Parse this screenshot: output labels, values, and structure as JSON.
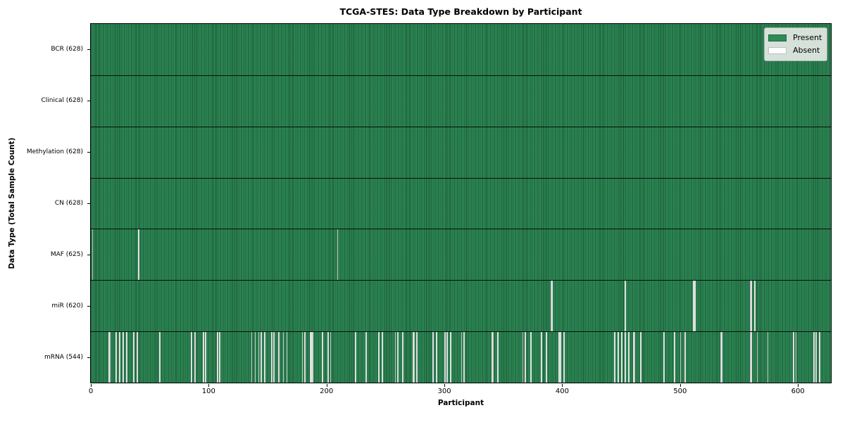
{
  "chart_data": {
    "type": "heatmap",
    "title": "TCGA-STES: Data Type Breakdown by Participant",
    "xlabel": "Participant",
    "ylabel": "Data Type (Total Sample Count)",
    "x_range": [
      0,
      628
    ],
    "x_ticks": [
      0,
      100,
      200,
      300,
      400,
      500,
      600
    ],
    "n_participants": 628,
    "grid": "row-separators-only",
    "legend_position": "upper right",
    "legend_entries": [
      {
        "label": "Present",
        "color": "#2e8b57"
      },
      {
        "label": "Absent",
        "color": "#ffffff"
      }
    ],
    "colors": {
      "present": "#2e8b57",
      "absent": "#ffffff",
      "cell_edge": "rgba(8,38,22,0.55)",
      "plot_border": "#000000",
      "legend_background": "#e9ece9"
    },
    "rows": [
      {
        "name": "BCR",
        "label": "BCR (628)",
        "present_count": 628,
        "absent_count": 0,
        "absent_participants": []
      },
      {
        "name": "Clinical",
        "label": "Clinical (628)",
        "present_count": 628,
        "absent_count": 0,
        "absent_participants": []
      },
      {
        "name": "Methylation",
        "label": "Methylation (628)",
        "present_count": 628,
        "absent_count": 0,
        "absent_participants": []
      },
      {
        "name": "CN",
        "label": "CN (628)",
        "present_count": 628,
        "absent_count": 0,
        "absent_participants": []
      },
      {
        "name": "MAF",
        "label": "MAF (625)",
        "present_count": 625,
        "absent_count": 3,
        "absent_participants": [
          1,
          40,
          209
        ]
      },
      {
        "name": "miR",
        "label": "miR (620)",
        "present_count": 620,
        "absent_count": 8,
        "absent_participants": [
          390,
          391,
          453,
          511,
          512,
          559,
          560,
          563
        ]
      },
      {
        "name": "mRNA",
        "label": "mRNA (544)",
        "present_count": 544,
        "absent_count": 84,
        "absent_participants": [
          15,
          16,
          21,
          24,
          27,
          30,
          36,
          39,
          58,
          85,
          88,
          95,
          97,
          107,
          109,
          136,
          139,
          142,
          144,
          147,
          153,
          155,
          159,
          163,
          166,
          179,
          181,
          186,
          187,
          188,
          196,
          201,
          203,
          224,
          233,
          244,
          247,
          258,
          260,
          264,
          273,
          274,
          276,
          290,
          293,
          300,
          302,
          305,
          314,
          316,
          340,
          341,
          345,
          366,
          368,
          373,
          382,
          386,
          397,
          398,
          401,
          444,
          447,
          450,
          453,
          456,
          460,
          461,
          466,
          486,
          495,
          500,
          504,
          534,
          535,
          559,
          560,
          565,
          574,
          596,
          598,
          613,
          615,
          618
        ]
      }
    ]
  }
}
